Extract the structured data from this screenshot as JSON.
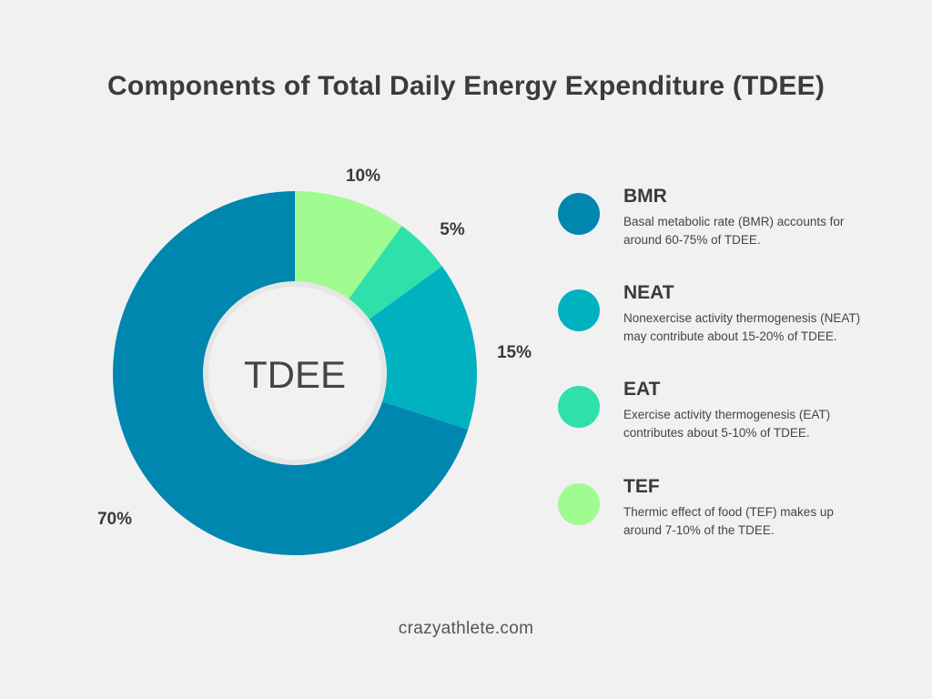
{
  "title": "Components of Total Daily Energy Expenditure (TDEE)",
  "footer": "crazyathlete.com",
  "chart_data": {
    "type": "pie",
    "donut": true,
    "center_label": "TDEE",
    "slices": [
      {
        "label": "10%",
        "value": 10,
        "color": "#a0fb90"
      },
      {
        "label": "5%",
        "value": 5,
        "color": "#2ee0a9"
      },
      {
        "label": "15%",
        "value": 15,
        "color": "#00b2bf"
      },
      {
        "label": "70%",
        "value": 70,
        "color": "#0087af"
      }
    ]
  },
  "legend": {
    "items": [
      {
        "name": "BMR",
        "desc": "Basal metabolic rate (BMR) accounts for around 60-75% of TDEE.",
        "color": "#0087af"
      },
      {
        "name": "NEAT",
        "desc": "Nonexercise activity thermogenesis (NEAT) may contribute about 15-20% of TDEE.",
        "color": "#00b2bf"
      },
      {
        "name": "EAT",
        "desc": "Exercise activity thermogenesis (EAT) contributes about 5-10% of TDEE.",
        "color": "#2ee0a9"
      },
      {
        "name": "TEF",
        "desc": "Thermic effect of food (TEF) makes up around 7-10% of the TDEE.",
        "color": "#a0fb90"
      }
    ]
  }
}
